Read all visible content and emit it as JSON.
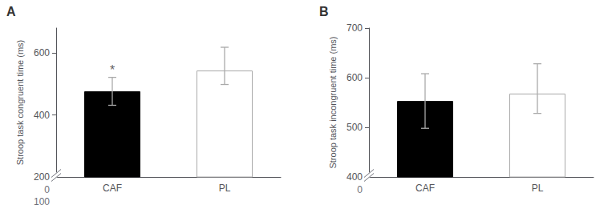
{
  "chart_data": [
    {
      "type": "bar",
      "title": "A",
      "categories": [
        "CAF",
        "PL"
      ],
      "values": [
        476,
        543
      ],
      "errors_up": [
        45,
        75
      ],
      "errors_down": [
        45,
        45
      ],
      "colors": [
        "#000000",
        "#ffffff"
      ],
      "edge_colors": [
        "#000000",
        "#aaaaaa"
      ],
      "error_color": "#aaaaaa",
      "ylabel": "Stroop task congruent time (ms)",
      "ylim": [
        200,
        680
      ],
      "yticks": [
        200,
        400,
        600
      ],
      "break_ticks": [
        0,
        100
      ],
      "annotations": [
        {
          "text": "*",
          "x": "CAF",
          "y": 525
        }
      ],
      "grid": false
    },
    {
      "type": "bar",
      "title": "B",
      "categories": [
        "CAF",
        "PL"
      ],
      "values": [
        553,
        568
      ],
      "errors_up": [
        55,
        60
      ],
      "errors_down": [
        55,
        40
      ],
      "colors": [
        "#000000",
        "#ffffff"
      ],
      "edge_colors": [
        "#000000",
        "#aaaaaa"
      ],
      "error_color": "#aaaaaa",
      "ylabel": "Stroop task incongruent time (ms)",
      "ylim": [
        400,
        700
      ],
      "yticks": [
        400,
        500,
        600,
        700
      ],
      "break_ticks": [
        0
      ],
      "grid": false
    }
  ]
}
